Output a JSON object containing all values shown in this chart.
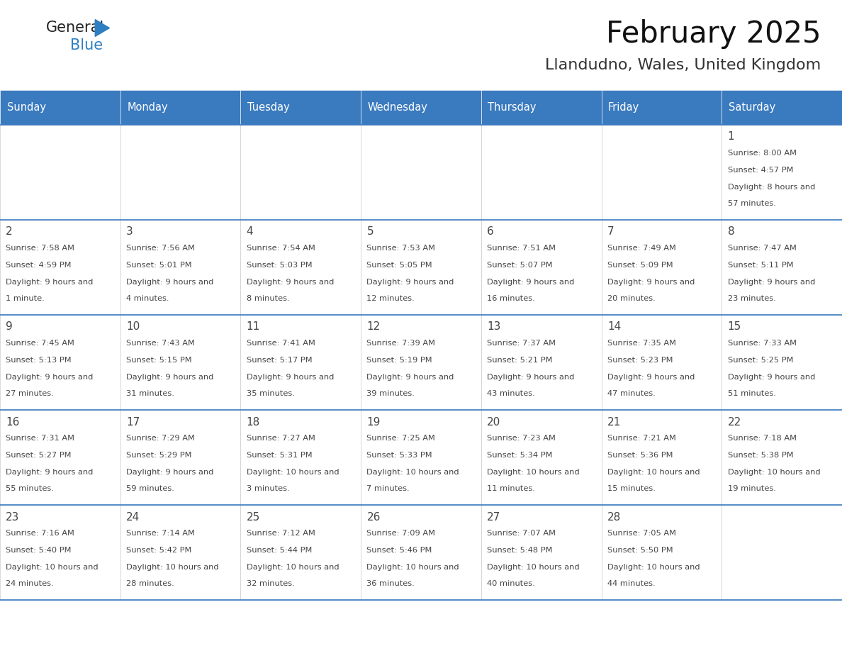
{
  "title": "February 2025",
  "subtitle": "Llandudno, Wales, United Kingdom",
  "header_color": "#3a7abf",
  "header_text_color": "#ffffff",
  "border_color": "#3a7abf",
  "day_names": [
    "Sunday",
    "Monday",
    "Tuesday",
    "Wednesday",
    "Thursday",
    "Friday",
    "Saturday"
  ],
  "text_color": "#444444",
  "logo_general_color": "#222222",
  "logo_blue_color": "#2e7fc1",
  "days": [
    {
      "day": 1,
      "col": 6,
      "row": 0,
      "sunrise": "8:00 AM",
      "sunset": "4:57 PM",
      "daylight": "8 hours and 57 minutes."
    },
    {
      "day": 2,
      "col": 0,
      "row": 1,
      "sunrise": "7:58 AM",
      "sunset": "4:59 PM",
      "daylight": "9 hours and 1 minute."
    },
    {
      "day": 3,
      "col": 1,
      "row": 1,
      "sunrise": "7:56 AM",
      "sunset": "5:01 PM",
      "daylight": "9 hours and 4 minutes."
    },
    {
      "day": 4,
      "col": 2,
      "row": 1,
      "sunrise": "7:54 AM",
      "sunset": "5:03 PM",
      "daylight": "9 hours and 8 minutes."
    },
    {
      "day": 5,
      "col": 3,
      "row": 1,
      "sunrise": "7:53 AM",
      "sunset": "5:05 PM",
      "daylight": "9 hours and 12 minutes."
    },
    {
      "day": 6,
      "col": 4,
      "row": 1,
      "sunrise": "7:51 AM",
      "sunset": "5:07 PM",
      "daylight": "9 hours and 16 minutes."
    },
    {
      "day": 7,
      "col": 5,
      "row": 1,
      "sunrise": "7:49 AM",
      "sunset": "5:09 PM",
      "daylight": "9 hours and 20 minutes."
    },
    {
      "day": 8,
      "col": 6,
      "row": 1,
      "sunrise": "7:47 AM",
      "sunset": "5:11 PM",
      "daylight": "9 hours and 23 minutes."
    },
    {
      "day": 9,
      "col": 0,
      "row": 2,
      "sunrise": "7:45 AM",
      "sunset": "5:13 PM",
      "daylight": "9 hours and 27 minutes."
    },
    {
      "day": 10,
      "col": 1,
      "row": 2,
      "sunrise": "7:43 AM",
      "sunset": "5:15 PM",
      "daylight": "9 hours and 31 minutes."
    },
    {
      "day": 11,
      "col": 2,
      "row": 2,
      "sunrise": "7:41 AM",
      "sunset": "5:17 PM",
      "daylight": "9 hours and 35 minutes."
    },
    {
      "day": 12,
      "col": 3,
      "row": 2,
      "sunrise": "7:39 AM",
      "sunset": "5:19 PM",
      "daylight": "9 hours and 39 minutes."
    },
    {
      "day": 13,
      "col": 4,
      "row": 2,
      "sunrise": "7:37 AM",
      "sunset": "5:21 PM",
      "daylight": "9 hours and 43 minutes."
    },
    {
      "day": 14,
      "col": 5,
      "row": 2,
      "sunrise": "7:35 AM",
      "sunset": "5:23 PM",
      "daylight": "9 hours and 47 minutes."
    },
    {
      "day": 15,
      "col": 6,
      "row": 2,
      "sunrise": "7:33 AM",
      "sunset": "5:25 PM",
      "daylight": "9 hours and 51 minutes."
    },
    {
      "day": 16,
      "col": 0,
      "row": 3,
      "sunrise": "7:31 AM",
      "sunset": "5:27 PM",
      "daylight": "9 hours and 55 minutes."
    },
    {
      "day": 17,
      "col": 1,
      "row": 3,
      "sunrise": "7:29 AM",
      "sunset": "5:29 PM",
      "daylight": "9 hours and 59 minutes."
    },
    {
      "day": 18,
      "col": 2,
      "row": 3,
      "sunrise": "7:27 AM",
      "sunset": "5:31 PM",
      "daylight": "10 hours and 3 minutes."
    },
    {
      "day": 19,
      "col": 3,
      "row": 3,
      "sunrise": "7:25 AM",
      "sunset": "5:33 PM",
      "daylight": "10 hours and 7 minutes."
    },
    {
      "day": 20,
      "col": 4,
      "row": 3,
      "sunrise": "7:23 AM",
      "sunset": "5:34 PM",
      "daylight": "10 hours and 11 minutes."
    },
    {
      "day": 21,
      "col": 5,
      "row": 3,
      "sunrise": "7:21 AM",
      "sunset": "5:36 PM",
      "daylight": "10 hours and 15 minutes."
    },
    {
      "day": 22,
      "col": 6,
      "row": 3,
      "sunrise": "7:18 AM",
      "sunset": "5:38 PM",
      "daylight": "10 hours and 19 minutes."
    },
    {
      "day": 23,
      "col": 0,
      "row": 4,
      "sunrise": "7:16 AM",
      "sunset": "5:40 PM",
      "daylight": "10 hours and 24 minutes."
    },
    {
      "day": 24,
      "col": 1,
      "row": 4,
      "sunrise": "7:14 AM",
      "sunset": "5:42 PM",
      "daylight": "10 hours and 28 minutes."
    },
    {
      "day": 25,
      "col": 2,
      "row": 4,
      "sunrise": "7:12 AM",
      "sunset": "5:44 PM",
      "daylight": "10 hours and 32 minutes."
    },
    {
      "day": 26,
      "col": 3,
      "row": 4,
      "sunrise": "7:09 AM",
      "sunset": "5:46 PM",
      "daylight": "10 hours and 36 minutes."
    },
    {
      "day": 27,
      "col": 4,
      "row": 4,
      "sunrise": "7:07 AM",
      "sunset": "5:48 PM",
      "daylight": "10 hours and 40 minutes."
    },
    {
      "day": 28,
      "col": 5,
      "row": 4,
      "sunrise": "7:05 AM",
      "sunset": "5:50 PM",
      "daylight": "10 hours and 44 minutes."
    }
  ]
}
